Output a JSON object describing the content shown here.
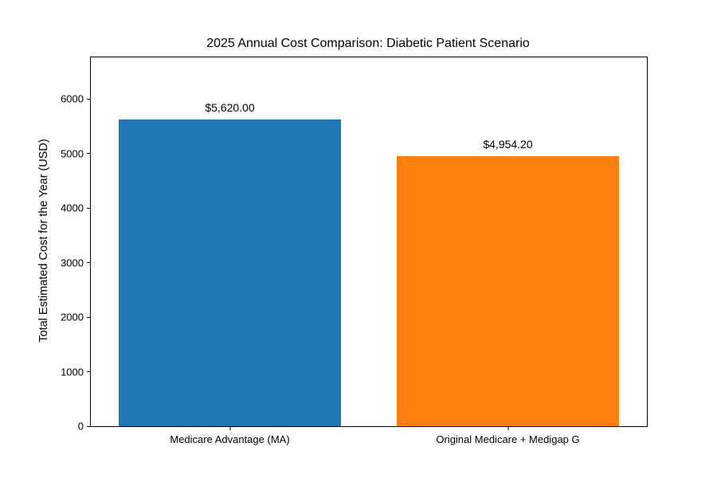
{
  "figure": {
    "background_color": "#ffffff",
    "text_color": "#000000",
    "spine_color": "#000000"
  },
  "chart_data": {
    "type": "bar",
    "title": "2025 Annual Cost Comparison: Diabetic Patient Scenario",
    "xlabel": "",
    "ylabel": "Total Estimated Cost for the Year (USD)",
    "categories": [
      "Medicare Advantage (MA)",
      "Original Medicare + Medigap G"
    ],
    "values": [
      5620.0,
      4954.2
    ],
    "value_labels": [
      "$5,620.00",
      "$4,954.20"
    ],
    "bar_colors": [
      "#1f77b4",
      "#ff7f0e"
    ],
    "ylim": [
      0,
      6760
    ],
    "yticks": [
      0,
      1000,
      2000,
      3000,
      4000,
      5000,
      6000
    ],
    "bar_width_fraction": 0.8,
    "grid": false,
    "legend_position": "none"
  }
}
